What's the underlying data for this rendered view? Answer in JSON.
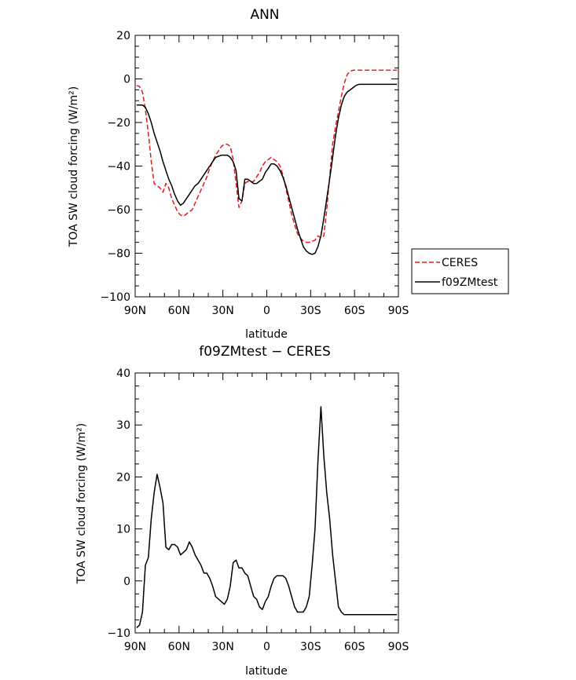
{
  "chart_data": [
    {
      "type": "line",
      "title": "ANN",
      "xlabel": "latitude",
      "ylabel": "TOA SW cloud forcing (W/m²)",
      "xlim": [
        90,
        -90
      ],
      "ylim": [
        -100,
        20
      ],
      "x_ticks": [
        {
          "value": 90,
          "label": "90N"
        },
        {
          "value": 60,
          "label": "60N"
        },
        {
          "value": 30,
          "label": "30N"
        },
        {
          "value": 0,
          "label": "0"
        },
        {
          "value": -30,
          "label": "30S"
        },
        {
          "value": -60,
          "label": "60S"
        },
        {
          "value": -90,
          "label": "90S"
        }
      ],
      "y_ticks": [
        {
          "value": 20,
          "label": "20"
        },
        {
          "value": 0,
          "label": "0"
        },
        {
          "value": -20,
          "label": "−20"
        },
        {
          "value": -40,
          "label": "−40"
        },
        {
          "value": -60,
          "label": "−60"
        },
        {
          "value": -80,
          "label": "−80"
        },
        {
          "value": -100,
          "label": "−100"
        }
      ],
      "legend_position": "right",
      "series": [
        {
          "name": "CERES",
          "color": "#e31a1c",
          "dash": "dashed",
          "x": [
            89,
            87,
            85,
            83,
            81,
            79,
            77,
            75,
            73,
            71,
            69,
            67,
            65,
            63,
            61,
            59,
            57,
            55,
            53,
            51,
            49,
            47,
            45,
            43,
            41,
            39,
            37,
            35,
            33,
            31,
            29,
            27,
            25,
            23,
            21,
            19,
            17,
            15,
            13,
            11,
            9,
            7,
            5,
            3,
            1,
            -1,
            -3,
            -5,
            -7,
            -9,
            -11,
            -13,
            -15,
            -17,
            -19,
            -21,
            -23,
            -25,
            -27,
            -29,
            -31,
            -33,
            -35,
            -37,
            -39,
            -41,
            -43,
            -45,
            -47,
            -49,
            -51,
            -53,
            -55,
            -57,
            -59,
            -61,
            -63,
            -65,
            -67,
            -69,
            -71,
            -73,
            -75,
            -77,
            -79,
            -81,
            -83,
            -85,
            -87,
            -89
          ],
          "y": [
            -3,
            -3.5,
            -6,
            -14,
            -25,
            -38,
            -48,
            -49,
            -50,
            -52,
            -48,
            -50,
            -55,
            -58,
            -61,
            -62.5,
            -63,
            -62,
            -61,
            -60,
            -57,
            -54,
            -51,
            -48,
            -45,
            -41,
            -38,
            -35,
            -33,
            -31,
            -30,
            -30,
            -31,
            -37,
            -48,
            -59,
            -56,
            -48,
            -47,
            -47.5,
            -47,
            -45,
            -43,
            -40,
            -38,
            -37,
            -36,
            -37,
            -38,
            -40,
            -44,
            -50,
            -56,
            -62,
            -67,
            -71,
            -73,
            -74.5,
            -75,
            -75,
            -74.5,
            -74,
            -72,
            -73,
            -72,
            -60,
            -45,
            -30,
            -22,
            -15,
            -8,
            -2,
            2,
            3.5,
            4,
            4,
            4,
            4,
            4,
            4,
            4,
            4,
            4,
            4,
            4,
            4,
            4,
            4,
            4,
            4
          ]
        },
        {
          "name": "f09ZMtest",
          "color": "#000000",
          "dash": "solid",
          "x": [
            89,
            87,
            85,
            83,
            81,
            79,
            77,
            75,
            73,
            71,
            69,
            67,
            65,
            63,
            61,
            59,
            57,
            55,
            53,
            51,
            49,
            47,
            45,
            43,
            41,
            39,
            37,
            35,
            33,
            31,
            29,
            27,
            25,
            23,
            21,
            19,
            17,
            15,
            13,
            11,
            9,
            7,
            5,
            3,
            1,
            -1,
            -3,
            -5,
            -7,
            -9,
            -11,
            -13,
            -15,
            -17,
            -19,
            -21,
            -23,
            -25,
            -27,
            -29,
            -31,
            -33,
            -35,
            -37,
            -39,
            -41,
            -43,
            -45,
            -47,
            -49,
            -51,
            -53,
            -55,
            -57,
            -59,
            -61,
            -63,
            -65,
            -67,
            -69,
            -71,
            -73,
            -75,
            -77,
            -79,
            -81,
            -83,
            -85,
            -87,
            -89
          ],
          "y": [
            -12,
            -12,
            -12,
            -13,
            -16,
            -20,
            -25,
            -29,
            -33,
            -38,
            -42,
            -46,
            -49,
            -53,
            -56,
            -58,
            -57,
            -55,
            -53,
            -51,
            -49,
            -48,
            -46,
            -44,
            -42,
            -40,
            -38,
            -36,
            -35.5,
            -35,
            -35,
            -35,
            -36,
            -38,
            -42,
            -55,
            -56,
            -46,
            -46,
            -47,
            -48,
            -48,
            -47,
            -46,
            -43,
            -41,
            -39,
            -39,
            -40,
            -42,
            -45,
            -49,
            -54,
            -59,
            -64,
            -69,
            -73,
            -77,
            -79,
            -80,
            -80.5,
            -80,
            -77,
            -72,
            -64,
            -55,
            -46,
            -36,
            -26,
            -18,
            -12,
            -8,
            -6,
            -5,
            -4,
            -3,
            -2.5,
            -2.5,
            -2.5,
            -2.5,
            -2.5,
            -2.5,
            -2.5,
            -2.5,
            -2.5,
            -2.5,
            -2.5,
            -2.5,
            -2.5,
            -2.5
          ]
        }
      ]
    },
    {
      "type": "line",
      "title": "f09ZMtest − CERES",
      "xlabel": "latitude",
      "ylabel": "TOA SW cloud forcing (W/m²)",
      "xlim": [
        90,
        -90
      ],
      "ylim": [
        -10,
        40
      ],
      "x_ticks": [
        {
          "value": 90,
          "label": "90N"
        },
        {
          "value": 60,
          "label": "60N"
        },
        {
          "value": 30,
          "label": "30N"
        },
        {
          "value": 0,
          "label": "0"
        },
        {
          "value": -30,
          "label": "30S"
        },
        {
          "value": -60,
          "label": "60S"
        },
        {
          "value": -90,
          "label": "90S"
        }
      ],
      "y_ticks": [
        {
          "value": 40,
          "label": "40"
        },
        {
          "value": 30,
          "label": "30"
        },
        {
          "value": 20,
          "label": "20"
        },
        {
          "value": 10,
          "label": "10"
        },
        {
          "value": 0,
          "label": "0"
        },
        {
          "value": -10,
          "label": "−10"
        }
      ],
      "series": [
        {
          "name": "",
          "color": "#000000",
          "dash": "solid",
          "x": [
            89,
            87,
            85,
            83,
            81,
            79,
            77,
            75,
            73,
            71,
            69,
            67,
            65,
            63,
            61,
            59,
            57,
            55,
            53,
            51,
            49,
            47,
            45,
            43,
            41,
            39,
            37,
            35,
            33,
            31,
            29,
            27,
            25,
            23,
            21,
            19,
            17,
            15,
            13,
            11,
            9,
            7,
            5,
            3,
            1,
            -1,
            -3,
            -5,
            -7,
            -9,
            -11,
            -13,
            -15,
            -17,
            -19,
            -21,
            -23,
            -25,
            -27,
            -29,
            -31,
            -33,
            -35,
            -37,
            -39,
            -41,
            -43,
            -45,
            -47,
            -49,
            -51,
            -53,
            -55,
            -57,
            -59,
            -61,
            -63,
            -65,
            -67,
            -69,
            -71,
            -73,
            -75,
            -77,
            -79,
            -81,
            -83,
            -85,
            -87,
            -89
          ],
          "y": [
            -9,
            -8.5,
            -6,
            3,
            4.5,
            12,
            17,
            20.5,
            18,
            15,
            6.5,
            6,
            7,
            7,
            6.5,
            5,
            5.5,
            6,
            7.5,
            6.5,
            5,
            4,
            3,
            1.5,
            1.5,
            0.5,
            -1,
            -3,
            -3.5,
            -4,
            -4.5,
            -3.5,
            -1,
            3.5,
            4,
            2.5,
            2.5,
            1.5,
            1,
            -1,
            -3,
            -3.5,
            -5,
            -5.5,
            -4,
            -3,
            -1,
            0.5,
            1,
            1,
            1,
            0.5,
            -1,
            -3,
            -5,
            -6,
            -6,
            -6,
            -5,
            -3,
            3,
            10,
            23,
            33.5,
            24,
            17,
            12,
            5,
            0,
            -5,
            -6,
            -6.5,
            -6.5,
            -6.5,
            -6.5,
            -6.5,
            -6.5,
            -6.5,
            -6.5,
            -6.5,
            -6.5,
            -6.5,
            -6.5,
            -6.5,
            -6.5,
            -6.5,
            -6.5,
            -6.5,
            -6.5,
            -6.5
          ]
        }
      ]
    }
  ]
}
